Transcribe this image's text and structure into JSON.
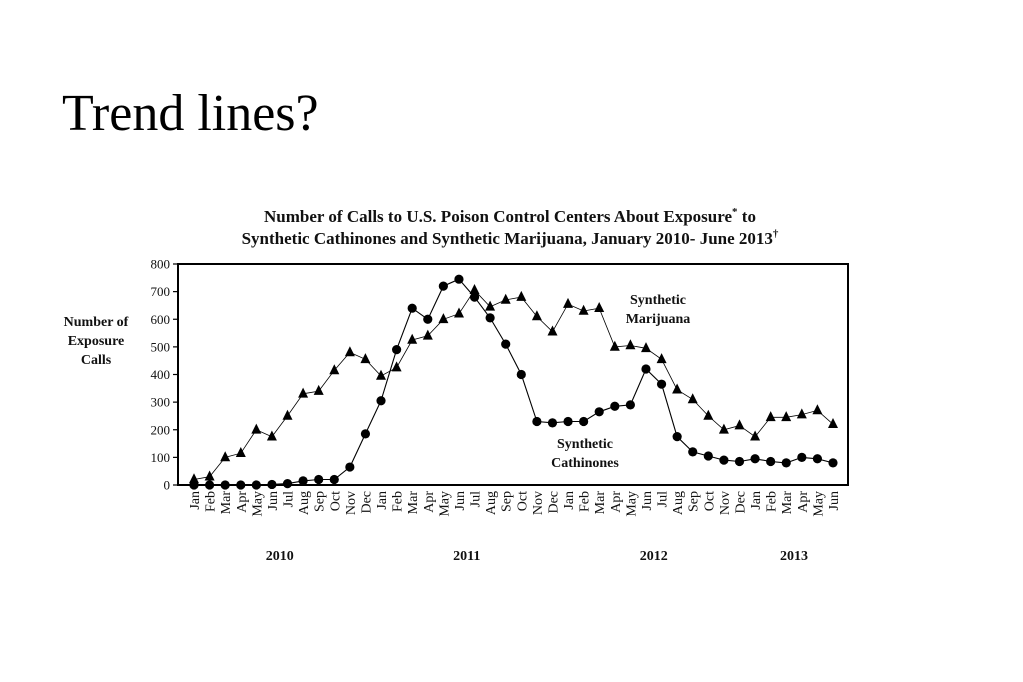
{
  "slide": {
    "title": "Trend lines?"
  },
  "chart_data": {
    "type": "line",
    "title_line1": "Number of Calls to U.S. Poison Control Centers About Exposure",
    "title_mark1": "*",
    "title_suffix1": " to",
    "title_line2": "Synthetic Cathinones and Synthetic Marijuana, January 2010- June 2013",
    "title_mark2": "†",
    "ylabel": [
      "Number of",
      "Exposure",
      "Calls"
    ],
    "ylim": [
      0,
      800
    ],
    "yticks": [
      0,
      100,
      200,
      300,
      400,
      500,
      600,
      700,
      800
    ],
    "x": [
      "Jan",
      "Feb",
      "Mar",
      "Apr",
      "May",
      "Jun",
      "Jul",
      "Aug",
      "Sep",
      "Oct",
      "Nov",
      "Dec",
      "Jan",
      "Feb",
      "Mar",
      "Apr",
      "May",
      "Jun",
      "Jul",
      "Aug",
      "Sep",
      "Oct",
      "Nov",
      "Dec",
      "Jan",
      "Feb",
      "Mar",
      "Apr",
      "May",
      "Jun",
      "Jul",
      "Aug",
      "Sep",
      "Oct",
      "Nov",
      "Dec",
      "Jan",
      "Feb",
      "Mar",
      "Apr",
      "May",
      "Jun"
    ],
    "years": [
      {
        "label": "2010",
        "start": 0,
        "end": 11
      },
      {
        "label": "2011",
        "start": 12,
        "end": 23
      },
      {
        "label": "2012",
        "start": 24,
        "end": 35
      },
      {
        "label": "2013",
        "start": 36,
        "end": 41
      }
    ],
    "grid": false,
    "series": [
      {
        "name": [
          "Synthetic",
          "Marijuana"
        ],
        "marker": "triangle",
        "values": [
          20,
          30,
          100,
          115,
          200,
          175,
          250,
          330,
          340,
          415,
          480,
          455,
          395,
          425,
          525,
          540,
          600,
          620,
          705,
          645,
          670,
          680,
          610,
          555,
          655,
          630,
          640,
          500,
          505,
          495,
          455,
          345,
          310,
          250,
          200,
          215,
          175,
          245,
          245,
          255,
          270,
          220
        ]
      },
      {
        "name": [
          "Synthetic",
          "Cathinones"
        ],
        "marker": "circle",
        "values": [
          0,
          0,
          0,
          0,
          0,
          2,
          5,
          15,
          20,
          20,
          65,
          185,
          305,
          490,
          640,
          600,
          720,
          745,
          680,
          605,
          510,
          400,
          230,
          225,
          230,
          230,
          265,
          285,
          290,
          420,
          365,
          175,
          120,
          105,
          90,
          85,
          95,
          85,
          80,
          100,
          95,
          80
        ]
      }
    ]
  }
}
